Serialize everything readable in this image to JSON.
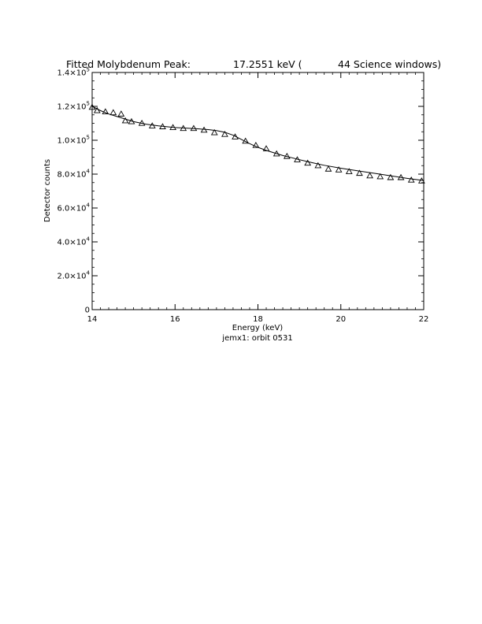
{
  "title": {
    "prefix": "Fitted Molybdenum Peak:",
    "energy": "17.2551 keV (",
    "windows": "44 Science windows)"
  },
  "subtitle": "jemx1: orbit 0531",
  "chart_data": {
    "type": "scatter",
    "title": "Fitted Molybdenum Peak:        17.2551 keV (       44 Science windows)",
    "xlabel": "Energy (keV)",
    "ylabel": "Detector counts",
    "xlim": [
      14,
      22
    ],
    "ylim": [
      0,
      140000
    ],
    "grid": false,
    "x_ticks": [
      {
        "v": 14,
        "label": "14"
      },
      {
        "v": 16,
        "label": "16"
      },
      {
        "v": 18,
        "label": "18"
      },
      {
        "v": 20,
        "label": "20"
      },
      {
        "v": 22,
        "label": "22"
      }
    ],
    "y_ticks": [
      {
        "v": 0,
        "mant": "0",
        "exp": ""
      },
      {
        "v": 20000,
        "mant": "2.0×10",
        "exp": "4"
      },
      {
        "v": 40000,
        "mant": "4.0×10",
        "exp": "4"
      },
      {
        "v": 60000,
        "mant": "6.0×10",
        "exp": "4"
      },
      {
        "v": 80000,
        "mant": "8.0×10",
        "exp": "4"
      },
      {
        "v": 100000,
        "mant": "1.0×10",
        "exp": "5"
      },
      {
        "v": 120000,
        "mant": "1.2×10",
        "exp": "5"
      },
      {
        "v": 140000,
        "mant": "1.4×10",
        "exp": "5"
      }
    ],
    "series": [
      {
        "marker": "triangle",
        "x": [
          14.0,
          14.12,
          14.32,
          14.51,
          14.7,
          14.8,
          14.95,
          15.2,
          15.45,
          15.7,
          15.95,
          16.2,
          16.45,
          16.7,
          16.95,
          17.2,
          17.45,
          17.7,
          17.95,
          18.2,
          18.45,
          18.7,
          18.95,
          19.2,
          19.45,
          19.7,
          19.95,
          20.2,
          20.45,
          20.7,
          20.95,
          21.2,
          21.45,
          21.7,
          21.95
        ],
        "y": [
          119500,
          117500,
          116800,
          116300,
          115500,
          111500,
          111000,
          110000,
          108500,
          108000,
          107500,
          107000,
          107000,
          106000,
          104500,
          103500,
          102000,
          99500,
          97000,
          95000,
          92000,
          90500,
          88500,
          86500,
          85000,
          83000,
          82500,
          81500,
          80500,
          79000,
          78500,
          78000,
          78000,
          76500,
          76000
        ]
      },
      {
        "marker": "line",
        "x": [
          14.0,
          14.2,
          14.4,
          14.6,
          14.8,
          15.0,
          15.3,
          15.6,
          16.0,
          16.4,
          16.8,
          17.0,
          17.2,
          17.4,
          17.6,
          17.8,
          18.0,
          18.2,
          18.4,
          18.6,
          18.8,
          19.0,
          19.3,
          19.6,
          20.0,
          20.4,
          20.8,
          21.2,
          21.6,
          22.0
        ],
        "y": [
          120000,
          117500,
          115500,
          114000,
          112500,
          111000,
          109500,
          108500,
          107500,
          107000,
          106300,
          105700,
          104700,
          103000,
          100500,
          98000,
          95800,
          94000,
          92500,
          91000,
          89800,
          88500,
          86800,
          85200,
          83500,
          82000,
          80500,
          79000,
          77500,
          76200
        ]
      }
    ]
  }
}
